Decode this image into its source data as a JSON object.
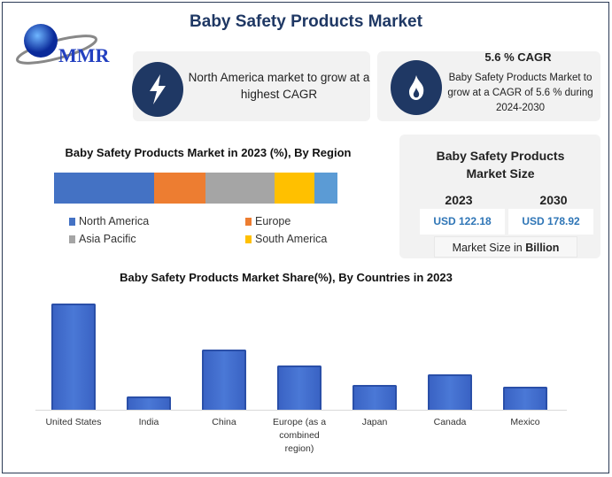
{
  "title": "Baby Safety Products Market",
  "logo": {
    "text": "MMR"
  },
  "highlights": [
    {
      "icon": "lightning-icon",
      "text": "North America market to grow at a highest CAGR"
    },
    {
      "icon": "flame-icon",
      "heading": "5.6 % CAGR",
      "text": "Baby Safety Products Market to grow at a CAGR of 5.6 % during 2024-2030"
    }
  ],
  "market_size": {
    "title": "Baby Safety Products Market Size",
    "years": [
      "2023",
      "2030"
    ],
    "values": [
      "USD 122.18",
      "USD 178.92"
    ],
    "note_prefix": "Market Size in ",
    "note_bold": "Billion"
  },
  "colors": {
    "primary": "#1f3864",
    "accent": "#2e75b6"
  },
  "chart_data": [
    {
      "type": "bar",
      "stacked": true,
      "orientation": "horizontal",
      "title": "Baby Safety Products Market in 2023 (%), By Region",
      "series": [
        {
          "name": "North America",
          "values": [
            35
          ],
          "color": "#4472c4"
        },
        {
          "name": "Europe",
          "values": [
            18
          ],
          "color": "#ed7d31"
        },
        {
          "name": "Asia Pacific",
          "values": [
            24
          ],
          "color": "#a5a5a5"
        },
        {
          "name": "South America",
          "values": [
            14
          ],
          "color": "#ffc000"
        },
        {
          "values": [
            8
          ],
          "color": "#5b9bd5"
        }
      ],
      "legend": "bottom"
    },
    {
      "type": "bar",
      "title": "Baby Safety Products Market Share(%), By Countries in 2023",
      "categories": [
        "United States",
        "India",
        "China",
        "Europe (as a combined region)",
        "Japan",
        "Canada",
        "Mexico"
      ],
      "values": [
        31,
        4,
        17.5,
        12.8,
        7.3,
        10.3,
        6.8
      ],
      "ylim": [
        0,
        32
      ],
      "grid": false,
      "color": "#4472c4"
    }
  ]
}
